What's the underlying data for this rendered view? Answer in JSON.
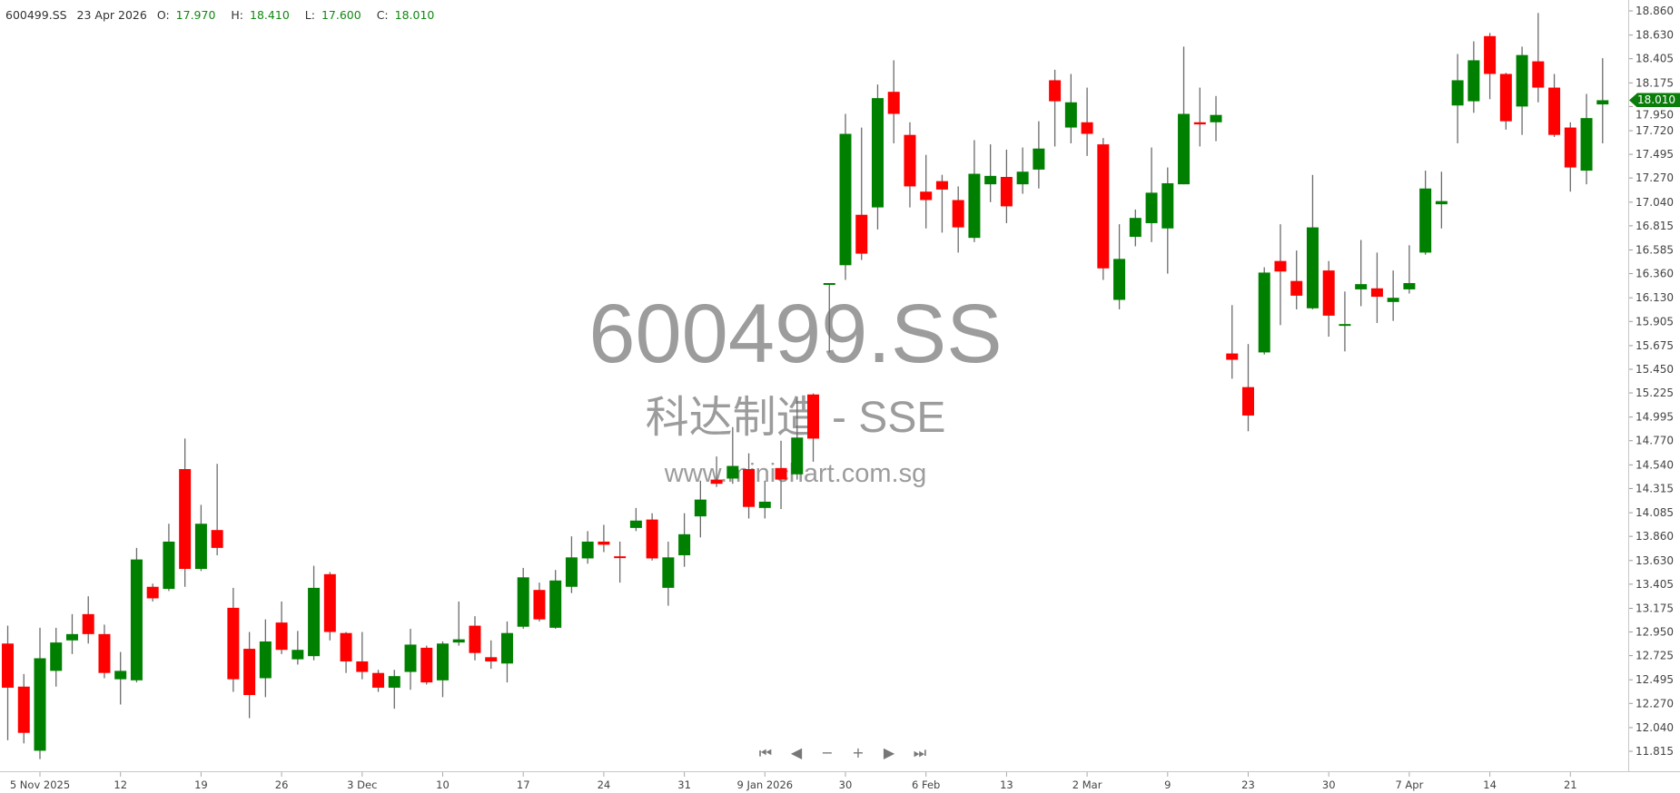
{
  "header": {
    "symbol": "600499.SS",
    "date": "23 Apr 2026",
    "open_label": "O:",
    "open": "17.970",
    "high_label": "H:",
    "high": "18.410",
    "low_label": "L:",
    "low": "17.600",
    "close_label": "C:",
    "close": "18.010"
  },
  "watermark": {
    "symbol": "600499.SS",
    "name": "科达制造 - SSE",
    "url": "www.minichart.com.sg"
  },
  "last_price_tag": "18.010",
  "navigation": [
    {
      "icon": "skip-to-start-icon",
      "glyph": "⏮"
    },
    {
      "icon": "scroll-left-icon",
      "glyph": "◀"
    },
    {
      "icon": "zoom-out-icon",
      "glyph": "−"
    },
    {
      "icon": "zoom-in-icon",
      "glyph": "+"
    },
    {
      "icon": "scroll-right-icon",
      "glyph": "▶"
    },
    {
      "icon": "skip-to-end-icon",
      "glyph": "⏭"
    }
  ],
  "colors": {
    "up": "#008000",
    "down": "#ff0000",
    "wick": "#6b6b6b",
    "axis": "#c8c8c8",
    "text": "#444444",
    "tag": "#0a7d0a"
  },
  "chart_data": {
    "type": "candlestick",
    "title": "",
    "ylim": [
      11.815,
      18.86
    ],
    "y_ticks": [
      "18.860",
      "18.630",
      "18.405",
      "18.175",
      "17.950",
      "17.720",
      "17.495",
      "17.270",
      "17.040",
      "16.815",
      "16.585",
      "16.360",
      "16.130",
      "15.905",
      "15.675",
      "15.450",
      "15.225",
      "14.995",
      "14.770",
      "14.540",
      "14.315",
      "14.085",
      "13.860",
      "13.630",
      "13.405",
      "13.175",
      "12.950",
      "12.725",
      "12.495",
      "12.270",
      "12.040",
      "11.815"
    ],
    "x_ticks": [
      "5 Nov 2025",
      "12",
      "19",
      "26",
      "3 Dec",
      "10",
      "17",
      "24",
      "31",
      "9 Jan 2026",
      "30",
      "6 Feb",
      "13",
      "2 Mar",
      "9",
      "23",
      "30",
      "7 Apr",
      "14",
      "21"
    ],
    "ohlc_fields": [
      "open",
      "high",
      "low",
      "close"
    ],
    "candles": [
      [
        12.84,
        13.01,
        11.92,
        12.42
      ],
      [
        12.43,
        12.55,
        11.89,
        11.99
      ],
      [
        11.82,
        12.99,
        11.74,
        12.7
      ],
      [
        12.58,
        12.99,
        12.43,
        12.85
      ],
      [
        12.87,
        13.12,
        12.74,
        12.93
      ],
      [
        13.12,
        13.29,
        12.84,
        12.93
      ],
      [
        12.93,
        13.02,
        12.51,
        12.56
      ],
      [
        12.5,
        12.76,
        12.26,
        12.58
      ],
      [
        12.49,
        13.75,
        12.47,
        13.64
      ],
      [
        13.38,
        13.41,
        13.24,
        13.27
      ],
      [
        13.36,
        13.98,
        13.34,
        13.81
      ],
      [
        14.5,
        14.79,
        13.38,
        13.55
      ],
      [
        13.55,
        14.16,
        13.53,
        13.98
      ],
      [
        13.92,
        14.55,
        13.68,
        13.75
      ],
      [
        13.18,
        13.37,
        12.38,
        12.5
      ],
      [
        12.79,
        12.95,
        12.13,
        12.35
      ],
      [
        12.51,
        13.07,
        12.33,
        12.86
      ],
      [
        13.04,
        13.24,
        12.74,
        12.78
      ],
      [
        12.69,
        12.96,
        12.64,
        12.78
      ],
      [
        12.72,
        13.58,
        12.68,
        13.37
      ],
      [
        13.5,
        13.52,
        12.87,
        12.95
      ],
      [
        12.94,
        12.95,
        12.56,
        12.67
      ],
      [
        12.67,
        12.95,
        12.5,
        12.57
      ],
      [
        12.56,
        12.59,
        12.38,
        12.42
      ],
      [
        12.42,
        12.59,
        12.22,
        12.53
      ],
      [
        12.57,
        12.98,
        12.4,
        12.83
      ],
      [
        12.8,
        12.82,
        12.45,
        12.47
      ],
      [
        12.49,
        12.86,
        12.33,
        12.84
      ],
      [
        12.85,
        13.24,
        12.82,
        12.88
      ],
      [
        13.01,
        13.1,
        12.68,
        12.75
      ],
      [
        12.71,
        12.87,
        12.6,
        12.67
      ],
      [
        12.65,
        13.05,
        12.47,
        12.94
      ],
      [
        13.0,
        13.56,
        12.98,
        13.47
      ],
      [
        13.35,
        13.42,
        13.05,
        13.07
      ],
      [
        12.99,
        13.54,
        12.98,
        13.44
      ],
      [
        13.38,
        13.86,
        13.32,
        13.66
      ],
      [
        13.65,
        13.91,
        13.6,
        13.81
      ],
      [
        13.81,
        13.97,
        13.71,
        13.78
      ],
      [
        13.67,
        13.81,
        13.42,
        13.66
      ],
      [
        13.94,
        14.13,
        13.91,
        14.01
      ],
      [
        14.02,
        14.08,
        13.63,
        13.65
      ],
      [
        13.37,
        13.81,
        13.2,
        13.66
      ],
      [
        13.68,
        14.08,
        13.57,
        13.88
      ],
      [
        14.05,
        14.39,
        13.85,
        14.21
      ],
      [
        14.4,
        14.62,
        14.33,
        14.36
      ],
      [
        14.41,
        14.9,
        14.36,
        14.53
      ],
      [
        14.5,
        14.65,
        14.03,
        14.14
      ],
      [
        14.13,
        14.39,
        14.03,
        14.19
      ],
      [
        14.51,
        14.77,
        14.12,
        14.4
      ],
      [
        14.45,
        15.18,
        14.4,
        14.8
      ],
      [
        15.21,
        15.22,
        14.57,
        14.79
      ],
      [
        16.26,
        16.27,
        15.61,
        16.27
      ],
      [
        16.44,
        17.88,
        16.3,
        17.69
      ],
      [
        16.92,
        17.75,
        16.49,
        16.55
      ],
      [
        16.99,
        18.16,
        16.78,
        18.03
      ],
      [
        18.09,
        18.39,
        17.6,
        17.88
      ],
      [
        17.68,
        17.8,
        16.99,
        17.19
      ],
      [
        17.14,
        17.49,
        16.79,
        17.06
      ],
      [
        17.24,
        17.3,
        16.75,
        17.16
      ],
      [
        17.06,
        17.19,
        16.56,
        16.8
      ],
      [
        16.7,
        17.63,
        16.66,
        17.31
      ],
      [
        17.21,
        17.59,
        17.04,
        17.29
      ],
      [
        17.28,
        17.54,
        16.84,
        17.0
      ],
      [
        17.21,
        17.56,
        17.12,
        17.33
      ],
      [
        17.35,
        17.81,
        17.17,
        17.55
      ],
      [
        18.2,
        18.3,
        17.57,
        18.0
      ],
      [
        17.75,
        18.26,
        17.6,
        17.99
      ],
      [
        17.8,
        18.13,
        17.48,
        17.69
      ],
      [
        17.59,
        17.65,
        16.3,
        16.41
      ],
      [
        16.11,
        16.83,
        16.02,
        16.5
      ],
      [
        16.71,
        16.97,
        16.62,
        16.89
      ],
      [
        16.84,
        17.56,
        16.66,
        17.13
      ],
      [
        16.79,
        17.37,
        16.36,
        17.22
      ],
      [
        17.21,
        18.52,
        17.21,
        17.88
      ],
      [
        17.8,
        18.13,
        17.57,
        17.78
      ],
      [
        17.8,
        18.05,
        17.62,
        17.87
      ],
      [
        15.6,
        16.06,
        15.36,
        15.54
      ],
      [
        15.28,
        15.69,
        14.86,
        15.01
      ],
      [
        15.61,
        16.42,
        15.59,
        16.37
      ],
      [
        16.48,
        16.83,
        15.87,
        16.38
      ],
      [
        16.29,
        16.58,
        16.02,
        16.15
      ],
      [
        16.03,
        17.3,
        16.02,
        16.8
      ],
      [
        16.39,
        16.48,
        15.76,
        15.96
      ],
      [
        15.87,
        16.19,
        15.62,
        15.88
      ],
      [
        16.21,
        16.68,
        16.05,
        16.26
      ],
      [
        16.22,
        16.56,
        15.89,
        16.14
      ],
      [
        16.09,
        16.39,
        15.91,
        16.13
      ],
      [
        16.21,
        16.63,
        16.17,
        16.27
      ],
      [
        16.56,
        17.34,
        16.54,
        17.17
      ],
      [
        17.02,
        17.33,
        16.79,
        17.05
      ],
      [
        17.96,
        18.45,
        17.6,
        18.2
      ],
      [
        18.0,
        18.57,
        17.89,
        18.39
      ],
      [
        18.62,
        18.65,
        18.02,
        18.26
      ],
      [
        18.26,
        18.27,
        17.73,
        17.81
      ],
      [
        17.95,
        18.52,
        17.68,
        18.44
      ],
      [
        18.38,
        18.84,
        17.99,
        18.13
      ],
      [
        18.13,
        18.26,
        17.66,
        17.68
      ],
      [
        17.75,
        17.8,
        17.14,
        17.37
      ],
      [
        17.34,
        18.07,
        17.21,
        17.84
      ],
      [
        17.97,
        18.41,
        17.6,
        18.01
      ]
    ],
    "last_price": 18.01,
    "grid": false,
    "legend": "none"
  }
}
